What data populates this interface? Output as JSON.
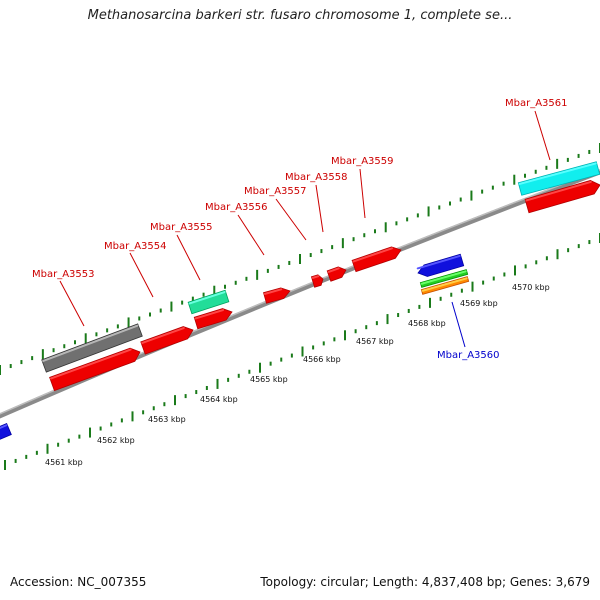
{
  "title": "Methanosarcina barkeri str. fusaro chromosome 1, complete se...",
  "footer": {
    "accession": "Accession: NC_007355",
    "summary": "Topology: circular; Length: 4,837,408 bp; Genes: 3,679"
  },
  "colors": {
    "backbone": "#8a8a8a",
    "tick": "#1a7a1a",
    "forward_label": "#cc0000",
    "reverse_label": "#0000cc"
  },
  "ruler_labels": [
    "4561 kbp",
    "4562 kbp",
    "4563 kbp",
    "4564 kbp",
    "4565 kbp",
    "4566 kbp",
    "4567 kbp",
    "4568 kbp",
    "4569 kbp",
    "4570 kbp"
  ],
  "features": [
    {
      "name": "Mbar_A3553",
      "labeled": true,
      "strand": "forward",
      "color": "#ee0000"
    },
    {
      "name": "Mbar_A3554",
      "labeled": true,
      "strand": "forward",
      "color": "#ee0000"
    },
    {
      "name": "Mbar_A3555",
      "labeled": true,
      "strand": "forward",
      "color": "#ee0000"
    },
    {
      "name": "Mbar_A3556",
      "labeled": true,
      "strand": "forward",
      "color": "#ee0000"
    },
    {
      "name": "Mbar_A3557",
      "labeled": true,
      "strand": "forward",
      "color": "#ee0000"
    },
    {
      "name": "Mbar_A3558",
      "labeled": true,
      "strand": "forward",
      "color": "#ee0000"
    },
    {
      "name": "Mbar_A3559",
      "labeled": true,
      "strand": "forward",
      "color": "#ee0000"
    },
    {
      "name": "Mbar_A3560",
      "labeled": true,
      "strand": "reverse",
      "color": "#1010dd"
    },
    {
      "name": "Mbar_A3561",
      "labeled": true,
      "strand": "forward",
      "color": "#ee0000"
    },
    {
      "name": "gray-feature",
      "labeled": false,
      "strand": "forward",
      "color": "#707070"
    },
    {
      "name": "teal-feature",
      "labeled": false,
      "strand": "forward",
      "color": "#22dd99"
    },
    {
      "name": "green-feature",
      "labeled": false,
      "strand": "reverse",
      "color": "#22cc22"
    },
    {
      "name": "orange-feature",
      "labeled": false,
      "strand": "reverse",
      "color": "#ff8800"
    },
    {
      "name": "cyan-feature",
      "labeled": false,
      "strand": "forward",
      "color": "#11eeee"
    },
    {
      "name": "left-blue-feature",
      "labeled": false,
      "strand": "reverse",
      "color": "#1010dd"
    }
  ]
}
